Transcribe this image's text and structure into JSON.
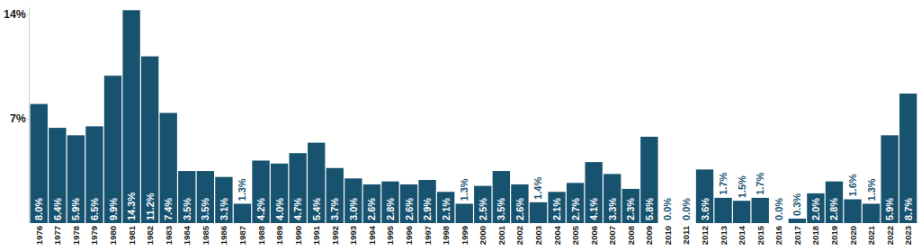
{
  "chart_data": {
    "type": "bar",
    "categories": [
      "1976",
      "1977",
      "1978",
      "1979",
      "1980",
      "1981",
      "1982",
      "1983",
      "1984",
      "1985",
      "1986",
      "1987",
      "1988",
      "1989",
      "1990",
      "1991",
      "1992",
      "1993",
      "1994",
      "1995",
      "1996",
      "1997",
      "1998",
      "1999",
      "2000",
      "2001",
      "2002",
      "2003",
      "2004",
      "2005",
      "2006",
      "2007",
      "2008",
      "2009",
      "2010",
      "2011",
      "2012",
      "2013",
      "2014",
      "2015",
      "2016",
      "2017",
      "2018",
      "2019",
      "2020",
      "2021",
      "2022",
      "2023"
    ],
    "values": [
      8.0,
      6.4,
      5.9,
      6.5,
      9.9,
      14.3,
      11.2,
      7.4,
      3.5,
      3.5,
      3.1,
      1.3,
      4.2,
      4.0,
      4.7,
      5.4,
      3.7,
      3.0,
      2.6,
      2.8,
      2.6,
      2.9,
      2.1,
      1.3,
      2.5,
      3.5,
      2.6,
      1.4,
      2.1,
      2.7,
      4.1,
      3.3,
      2.3,
      5.8,
      0.0,
      0.0,
      3.6,
      1.7,
      1.5,
      1.7,
      0.0,
      0.3,
      2.0,
      2.8,
      1.6,
      1.3,
      5.9,
      8.7
    ],
    "value_labels": [
      "8.0%",
      "6.4%",
      "5.9%",
      "6.5%",
      "9.9%",
      "14.3%",
      "11.2%",
      "7.4%",
      "3.5%",
      "3.5%",
      "3.1%",
      "1.3%",
      "4.2%",
      "4.0%",
      "4.7%",
      "5.4%",
      "3.7%",
      "3.0%",
      "2.6%",
      "2.8%",
      "2.6%",
      "2.9%",
      "2.1%",
      "1.3%",
      "2.5%",
      "3.5%",
      "2.6%",
      "1.4%",
      "2.1%",
      "2.7%",
      "4.1%",
      "3.3%",
      "2.3%",
      "5.8%",
      "0.0%",
      "0.0%",
      "3.6%",
      "1.7%",
      "1.5%",
      "1.7%",
      "0.0%",
      "0.3%",
      "2.0%",
      "2.8%",
      "1.6%",
      "1.3%",
      "5.9%",
      "8.7%"
    ],
    "color": "#17526f",
    "ylim": [
      0,
      14.5
    ],
    "yticks": [
      {
        "value": 7,
        "label": "7%"
      },
      {
        "value": 14,
        "label": "14%"
      }
    ],
    "grid": false,
    "data_labels": true
  }
}
